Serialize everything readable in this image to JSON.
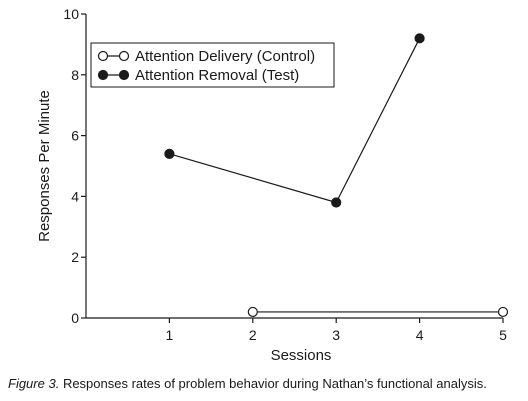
{
  "chart_data": {
    "type": "line",
    "xlabel": "Sessions",
    "ylabel": "Responses Per Minute",
    "xlim": [
      0,
      5
    ],
    "ylim": [
      0,
      10
    ],
    "x_ticks": [
      1,
      2,
      3,
      4,
      5
    ],
    "y_ticks": [
      0,
      2,
      4,
      6,
      8,
      10
    ],
    "legend_placement": "top-left",
    "grid": false,
    "series": [
      {
        "name": "Attention Delivery (Control)",
        "marker": "open-circle",
        "color": "#1a1a1a",
        "x": [
          2,
          5
        ],
        "y": [
          0.2,
          0.2
        ]
      },
      {
        "name": "Attention Removal (Test)",
        "marker": "filled-circle",
        "color": "#1a1a1a",
        "x": [
          1,
          3,
          4
        ],
        "y": [
          5.4,
          3.8,
          9.2
        ]
      }
    ]
  },
  "caption": {
    "figure_label": "Figure 3.",
    "text": "Responses rates of problem behavior during Nathan’s functional analysis."
  }
}
